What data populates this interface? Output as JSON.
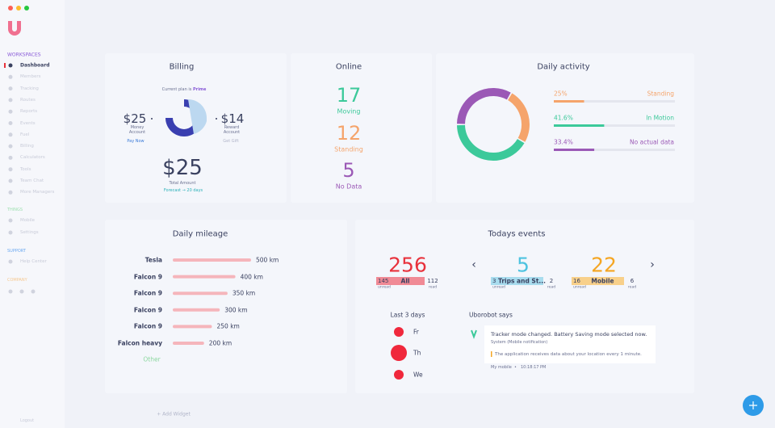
{
  "sidebar": {
    "workspaces": "WORKSPACES",
    "items": [
      "Dashboard",
      "Members",
      "Tracking",
      "Routes",
      "Reports",
      "Events",
      "Fuel",
      "Billing",
      "Calculators",
      "Tools",
      "Team Chat",
      "More Managers"
    ],
    "things": {
      "title": "THINGS",
      "items": [
        "Mobile",
        "Settings"
      ]
    },
    "support": {
      "title": "SUPPORT",
      "items": [
        "Help Center"
      ]
    },
    "company": {
      "title": "COMPANY"
    },
    "logout": "Logout"
  },
  "billing": {
    "title": "Billing",
    "plan_text": "Current plan is",
    "plan": "Prime",
    "money": {
      "amount": "$25",
      "label": "Money Account",
      "action": "Pay Now"
    },
    "reward": {
      "amount": "$14",
      "label": "Reward Account",
      "action": "Get Gift"
    },
    "total": {
      "amount": "$25",
      "label": "Total Amount",
      "forecast": "Forecast → 20 days"
    }
  },
  "online": {
    "title": "Online",
    "stats": [
      {
        "value": 17,
        "label": "Moving",
        "color": "#3cc99a"
      },
      {
        "value": 12,
        "label": "Standing",
        "color": "#f5a46b"
      },
      {
        "value": 5,
        "label": "No Data",
        "color": "#9b59b6"
      }
    ]
  },
  "daily_activity": {
    "title": "Daily activity",
    "names": [
      "Standing",
      "In Motion",
      "No actual data"
    ],
    "values": [
      25,
      41.6,
      33.4
    ],
    "value_labels": [
      "25%",
      "41.6%",
      "33.4%"
    ],
    "colors": [
      "#f5a46b",
      "#3cc99a",
      "#9b59b6"
    ]
  },
  "daily_mileage": {
    "title": "Daily mileage",
    "categories": [
      "Tesla",
      "Falcon 9",
      "Falcon 9",
      "Falcon 9",
      "Falcon 9",
      "Falcon heavy"
    ],
    "values": [
      500,
      400,
      350,
      300,
      250,
      200
    ],
    "value_labels": [
      "500 km",
      "400 km",
      "350 km",
      "300 km",
      "250 km",
      "200 km"
    ],
    "color": "#f5b5bb",
    "other": "Other"
  },
  "todays_events": {
    "title": "Todays events",
    "unread_label": "unread",
    "read_label": "read",
    "groups": [
      {
        "total": 256,
        "tag": "All",
        "unread": 145,
        "read": 112,
        "color": "#e8323c",
        "tag_color": "#f08a95"
      },
      {
        "total": 5,
        "tag": "Trips and St...",
        "unread": 3,
        "read": 2,
        "color": "#4ec3e0",
        "tag_color": "#a8dcee"
      },
      {
        "total": 22,
        "tag": "Mobile",
        "unread": 16,
        "read": 6,
        "color": "#f5a623",
        "tag_color": "#f8d08a"
      }
    ]
  },
  "last_days": {
    "title": "Last 3 days",
    "days": [
      "Fr",
      "Th",
      "We"
    ]
  },
  "uborobot": {
    "title": "Uborobot says",
    "message": "Tracker mode changed. Battery Saving mode selected now.",
    "source": "System (Mobile notification)",
    "note": "The application receives data about your location every 1 minute.",
    "device": "My mobile",
    "separator": "•",
    "time": "10:18:17 PM"
  },
  "add_widget": "+ Add Widget"
}
